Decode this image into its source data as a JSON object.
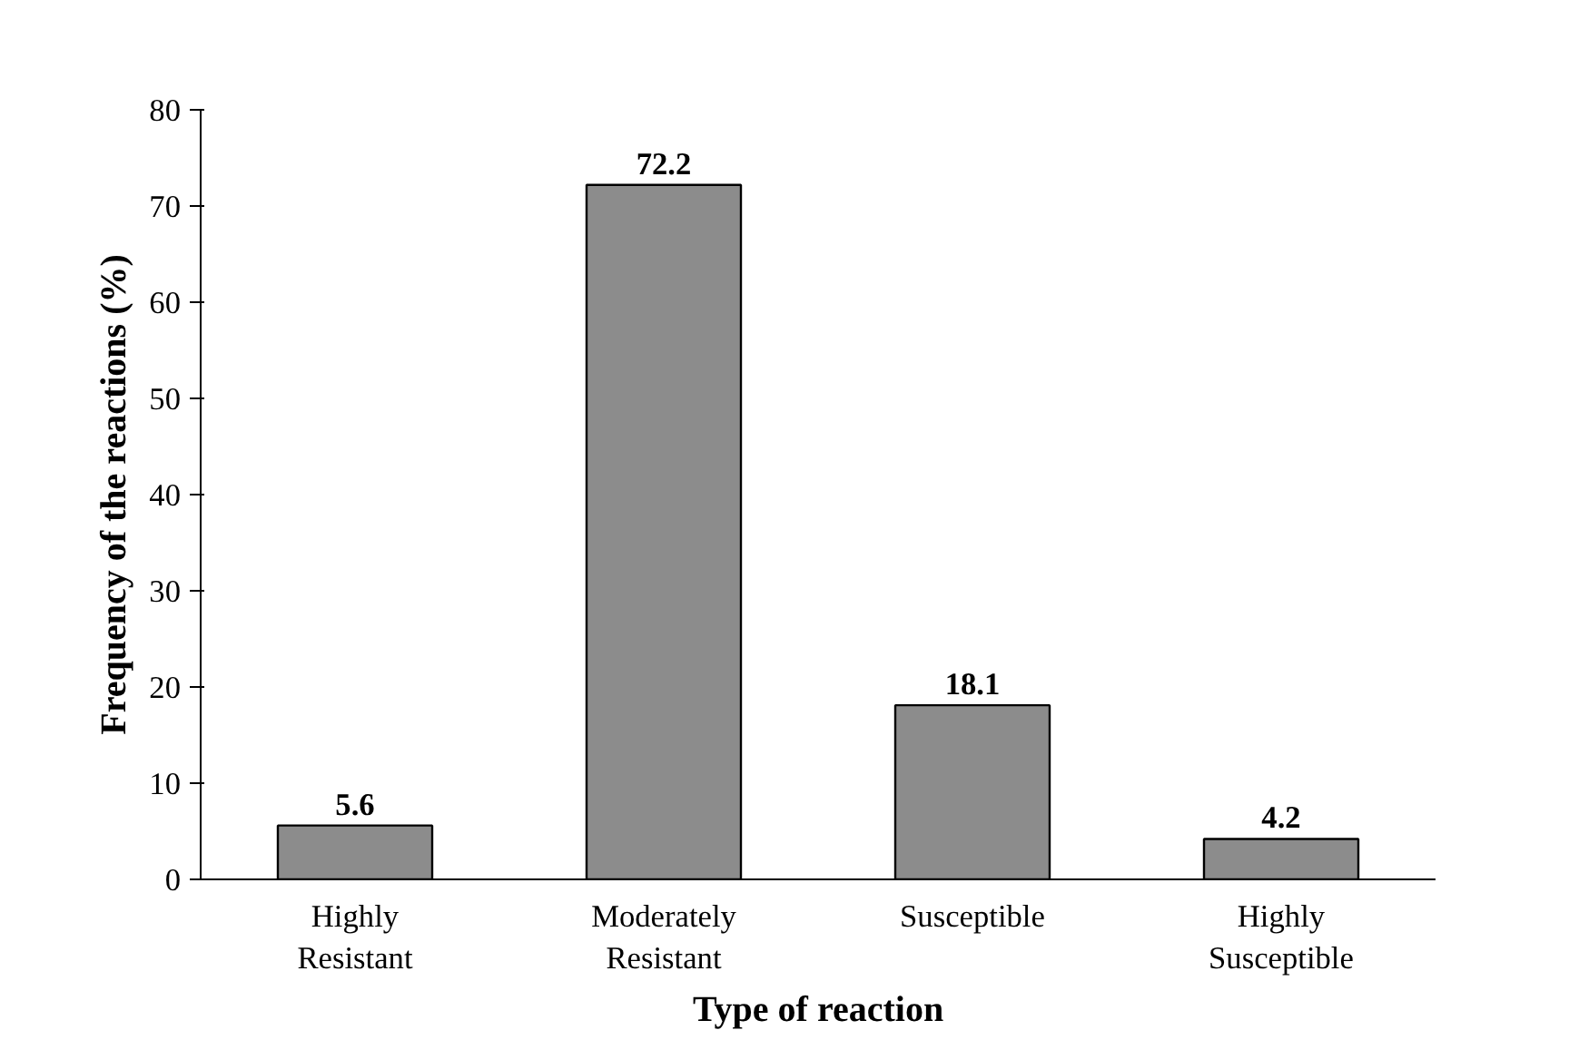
{
  "chart_data": {
    "type": "bar",
    "xlabel": "Type of reaction",
    "ylabel": "Frequency of the reactions (%)",
    "categories": [
      "Highly Resistant",
      "Moderately Resistant",
      "Susceptible",
      "Highly Susceptible"
    ],
    "values": [
      5.6,
      72.2,
      18.1,
      4.2
    ],
    "color": "#8c8c8c",
    "ylim": [
      0,
      80
    ],
    "yticks": [
      0,
      10,
      20,
      30,
      40,
      50,
      60,
      70,
      80
    ],
    "data_labels": true
  }
}
